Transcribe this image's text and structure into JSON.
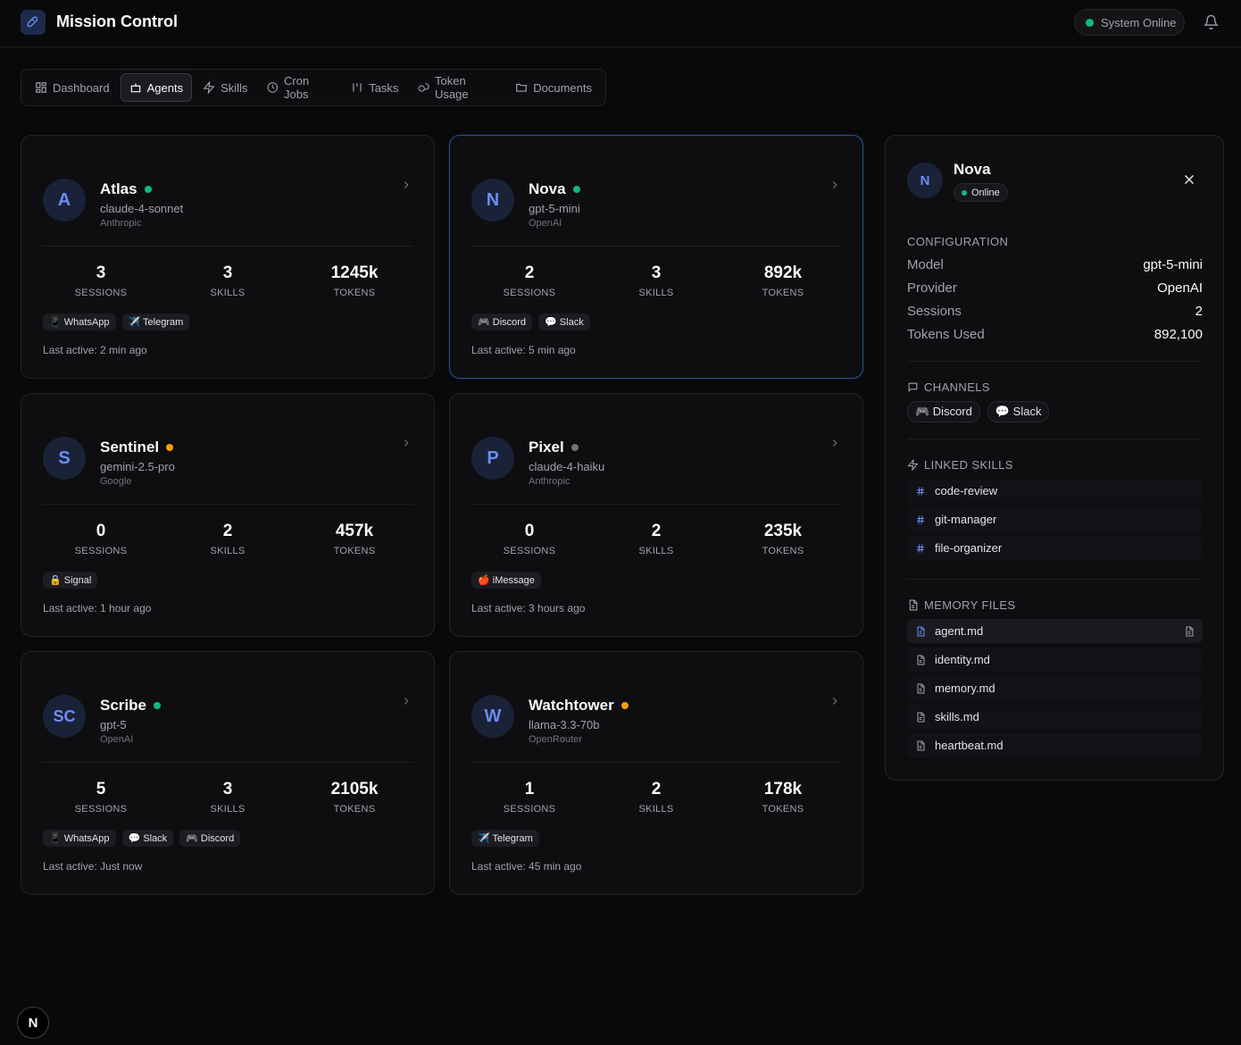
{
  "header": {
    "title": "Mission Control",
    "status": "System Online"
  },
  "nav": {
    "items": [
      "Dashboard",
      "Agents",
      "Skills",
      "Cron Jobs",
      "Tasks",
      "Token Usage",
      "Documents"
    ],
    "active": 1
  },
  "stat_labels": [
    "SESSIONS",
    "SKILLS",
    "TOKENS"
  ],
  "agents": [
    {
      "initials": "A",
      "name": "Atlas",
      "status_color": "#10b981",
      "model": "claude-4-sonnet",
      "provider": "Anthropic",
      "sessions": 3,
      "skills": 3,
      "tokens": "1245k",
      "channels": [
        "📱 WhatsApp",
        "✈️ Telegram"
      ],
      "last_active": "Last active: 2 min ago",
      "selected": false
    },
    {
      "initials": "N",
      "name": "Nova",
      "status_color": "#10b981",
      "model": "gpt-5-mini",
      "provider": "OpenAI",
      "sessions": 2,
      "skills": 3,
      "tokens": "892k",
      "channels": [
        "🎮 Discord",
        "💬 Slack"
      ],
      "last_active": "Last active: 5 min ago",
      "selected": true
    },
    {
      "initials": "S",
      "name": "Sentinel",
      "status_color": "#f59e0b",
      "model": "gemini-2.5-pro",
      "provider": "Google",
      "sessions": 0,
      "skills": 2,
      "tokens": "457k",
      "channels": [
        "🔒 Signal"
      ],
      "last_active": "Last active: 1 hour ago",
      "selected": false
    },
    {
      "initials": "P",
      "name": "Pixel",
      "status_color": "#71717a",
      "model": "claude-4-haiku",
      "provider": "Anthropic",
      "sessions": 0,
      "skills": 2,
      "tokens": "235k",
      "channels": [
        "🍎 iMessage"
      ],
      "last_active": "Last active: 3 hours ago",
      "selected": false
    },
    {
      "initials": "SC",
      "name": "Scribe",
      "status_color": "#10b981",
      "model": "gpt-5",
      "provider": "OpenAI",
      "sessions": 5,
      "skills": 3,
      "tokens": "2105k",
      "channels": [
        "📱 WhatsApp",
        "💬 Slack",
        "🎮 Discord"
      ],
      "last_active": "Last active: Just now",
      "selected": false
    },
    {
      "initials": "W",
      "name": "Watchtower",
      "status_color": "#f59e0b",
      "model": "llama-3.3-70b",
      "provider": "OpenRouter",
      "sessions": 1,
      "skills": 2,
      "tokens": "178k",
      "channels": [
        "✈️ Telegram"
      ],
      "last_active": "Last active: 45 min ago",
      "selected": false
    }
  ],
  "detail": {
    "initials": "N",
    "name": "Nova",
    "status": "Online",
    "config_title": "CONFIGURATION",
    "config": [
      [
        "Model",
        "gpt-5-mini"
      ],
      [
        "Provider",
        "OpenAI"
      ],
      [
        "Sessions",
        2
      ],
      [
        "Tokens Used",
        "892,100"
      ]
    ],
    "channels_title": "CHANNELS",
    "channels": [
      "🎮 Discord",
      "💬 Slack"
    ],
    "skills_title": "LINKED SKILLS",
    "skills": [
      "code-review",
      "git-manager",
      "file-organizer"
    ],
    "memory_title": "MEMORY FILES",
    "memory_files": [
      "agent.md",
      "identity.md",
      "memory.md",
      "skills.md",
      "heartbeat.md"
    ],
    "active_file": 0
  },
  "footer": {
    "badge": "N"
  }
}
